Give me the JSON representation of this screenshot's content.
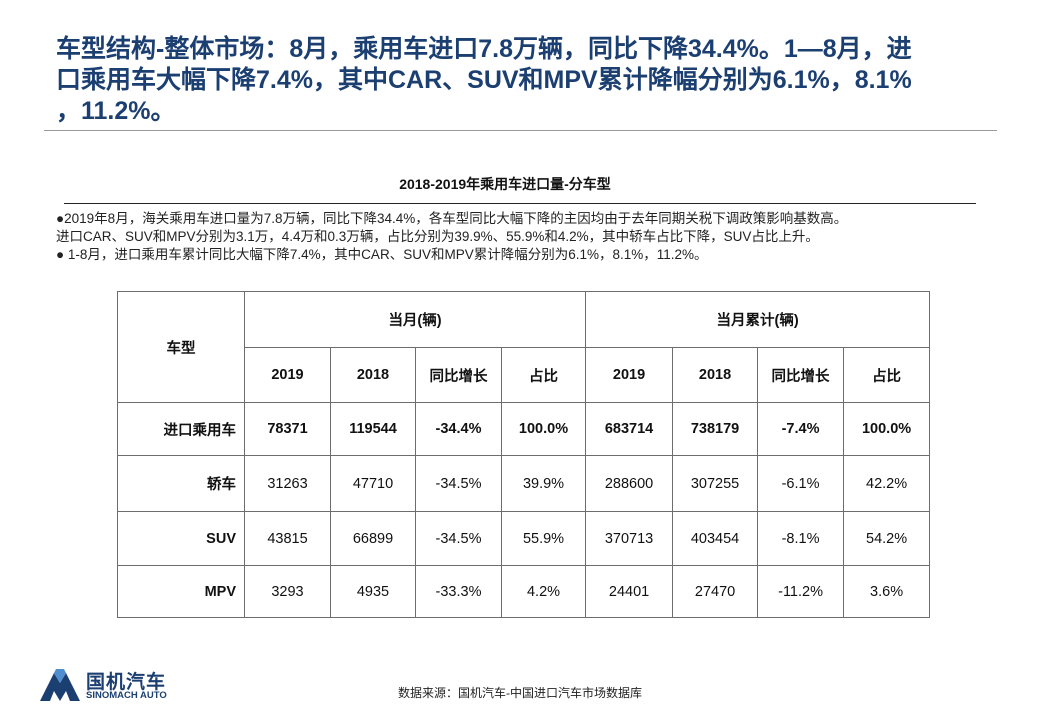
{
  "headline": {
    "line1": "车型结构-整体市场：8月，乘用车进口7.8万辆，同比下降34.4%。1—8月，进",
    "line2": "口乘用车大幅下降7.4%，其中CAR、SUV和MPV累计降幅分别为6.1%，8.1%",
    "line3": "，11.2%。"
  },
  "chart_title": "2018-2019年乘用车进口量-分车型",
  "bullets": [
    "●2019年8月，海关乘用车进口量为7.8万辆，同比下降34.4%，各车型同比大幅下降的主因均由于去年同期关税下调政策影响基数高。",
    "进口CAR、SUV和MPV分别为3.1万，4.4万和0.3万辆，占比分别为39.9%、55.9%和4.2%，其中轿车占比下降，SUV占比上升。",
    "● 1-8月，进口乘用车累计同比大幅下降7.4%，其中CAR、SUV和MPV累计降幅分别为6.1%，8.1%，11.2%。"
  ],
  "table": {
    "col_type": "车型",
    "group_month": "当月(辆)",
    "group_ytd": "当月累计(辆)",
    "sub_headers": [
      "2019",
      "2018",
      "同比增长",
      "占比",
      "2019",
      "2018",
      "同比增长",
      "占比"
    ],
    "rows": [
      {
        "type": "进口乘用车",
        "values": [
          "78371",
          "119544",
          "-34.4%",
          "100.0%",
          "683714",
          "738179",
          "-7.4%",
          "100.0%"
        ]
      },
      {
        "type": "轿车",
        "values": [
          "31263",
          "47710",
          "-34.5%",
          "39.9%",
          "288600",
          "307255",
          "-6.1%",
          "42.2%"
        ]
      },
      {
        "type": "SUV",
        "values": [
          "43815",
          "66899",
          "-34.5%",
          "55.9%",
          "370713",
          "403454",
          "-8.1%",
          "54.2%"
        ]
      },
      {
        "type": "MPV",
        "values": [
          "3293",
          "4935",
          "-33.3%",
          "4.2%",
          "24401",
          "27470",
          "-11.2%",
          "3.6%"
        ]
      }
    ]
  },
  "logo": {
    "name_cn": "国机汽车",
    "name_en": "SINOMACH AUTO",
    "icon": "sinomach-logo-icon"
  },
  "source": "数据来源：国机汽车-中国进口汽车市场数据库",
  "colors": {
    "headline": "#1c3f72",
    "logo_blue": "#1c3f72",
    "logo_light": "#4f8fd0"
  }
}
